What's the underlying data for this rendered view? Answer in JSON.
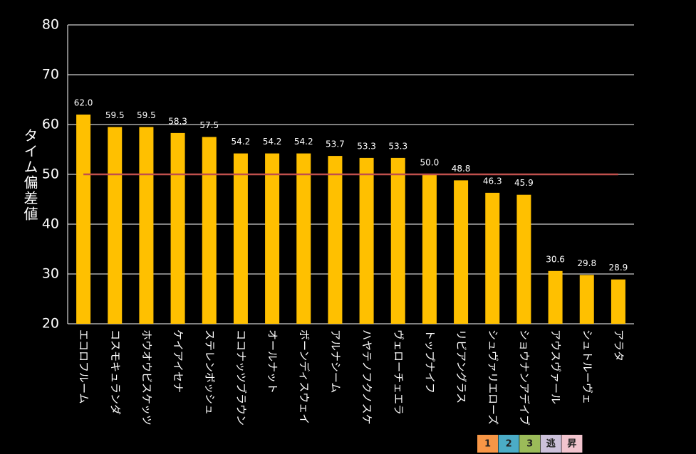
{
  "chart_data": {
    "type": "bar",
    "y_label": "タイム偏差値",
    "categories": [
      "エコロフルーム",
      "コスモキュランダ",
      "ホウオウビスケッツ",
      "ケイアイセナ",
      "ステレンボッシュ",
      "ココナッツブラウン",
      "オールナット",
      "ボーンディスウェイ",
      "アルナシーム",
      "ハヤテノフクノスケ",
      "ヴェローチェエラ",
      "トップナイフ",
      "リビアングラス",
      "シュヴァリエローズ",
      "ショウナンアデイブ",
      "アウスヴァール",
      "シュトルーヴェ",
      "アラタ"
    ],
    "values": [
      62.0,
      59.5,
      59.5,
      58.3,
      57.5,
      54.2,
      54.2,
      54.2,
      53.7,
      53.3,
      53.3,
      50.0,
      48.8,
      46.3,
      45.9,
      30.6,
      29.8,
      28.9
    ],
    "value_labels": [
      "62.0",
      "59.5",
      "59.5",
      "58.3",
      "57.5",
      "54.2",
      "54.2",
      "54.2",
      "53.7",
      "53.3",
      "53.3",
      "50.0",
      "48.8",
      "46.3",
      "45.9",
      "30.6",
      "29.8",
      "28.9"
    ],
    "color": "#ffc000",
    "reference_line": {
      "value": 50,
      "color": "#c0504d"
    },
    "ylim": [
      20,
      80
    ],
    "yticks": [
      20,
      30,
      40,
      50,
      60,
      70,
      80
    ],
    "grid": true
  },
  "badges": [
    {
      "label": "1",
      "color": "#f79646"
    },
    {
      "label": "2",
      "color": "#4bacc6"
    },
    {
      "label": "3",
      "color": "#9bbb59"
    },
    {
      "label": "逃",
      "color": "#ccc0da"
    },
    {
      "label": "昇",
      "color": "#f2c4ce"
    }
  ]
}
